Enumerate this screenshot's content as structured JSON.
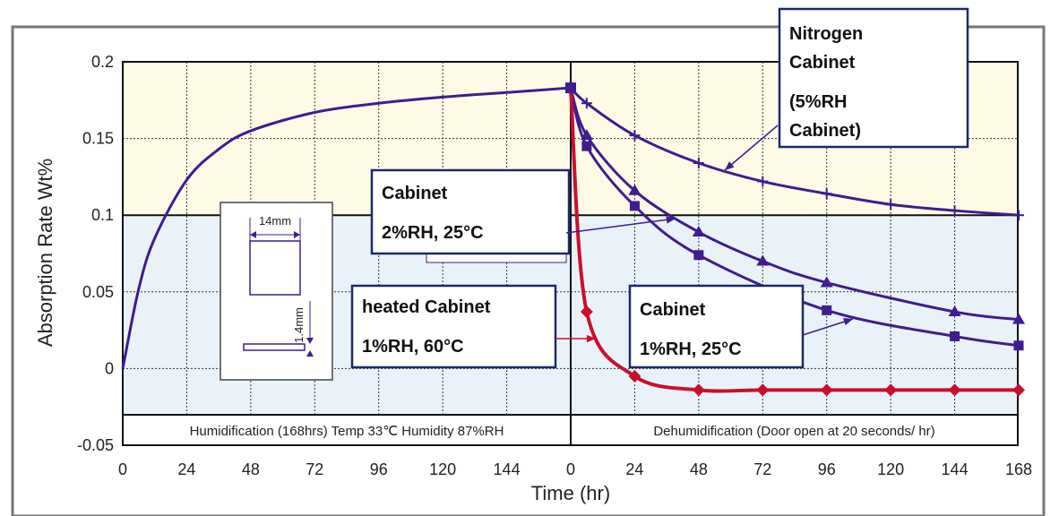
{
  "chart_data": {
    "type": "line",
    "xlabel": "Time (hr)",
    "ylabel": "Absorption Rate Wt%",
    "ylim": [
      -0.05,
      0.2
    ],
    "y_ticks": [
      "0.2",
      "0.15",
      "0.1",
      "0.05",
      "0",
      "-0.05"
    ],
    "x_ticks_humidification": [
      "0",
      "24",
      "48",
      "72",
      "96",
      "120",
      "144"
    ],
    "x_ticks_dehumidification": [
      "0",
      "24",
      "48",
      "72",
      "96",
      "120",
      "144",
      "168"
    ],
    "phase_labels": {
      "humidification": "Humidification (168hrs) Temp 33℃ Humidity 87%RH",
      "dehumidification": "Dehumidification (Door open at 20 seconds/ hr)"
    },
    "humidification_series": {
      "x": [
        0,
        6,
        12,
        24,
        36,
        48,
        72,
        96,
        120,
        144,
        168
      ],
      "y": [
        0.0,
        0.052,
        0.085,
        0.123,
        0.143,
        0.155,
        0.167,
        0.173,
        0.177,
        0.18,
        0.183
      ]
    },
    "series": [
      {
        "name": "Nitrogen Cabinet (5%RH Cabinet)",
        "marker": "plus",
        "color": "#3f1c8f",
        "x": [
          0,
          6,
          24,
          48,
          72,
          96,
          120,
          144,
          168
        ],
        "y": [
          0.183,
          0.173,
          0.152,
          0.134,
          0.122,
          0.114,
          0.107,
          0.103,
          0.1
        ]
      },
      {
        "name": "Cabinet 2%RH, 25°C",
        "marker": "triangle",
        "color": "#3f1c8f",
        "x": [
          0,
          6,
          24,
          48,
          72,
          96,
          144,
          168
        ],
        "y": [
          0.183,
          0.152,
          0.116,
          0.089,
          0.07,
          0.056,
          0.037,
          0.032
        ]
      },
      {
        "name": "Cabinet 1%RH, 25°C",
        "marker": "square",
        "color": "#3f1c8f",
        "x": [
          0,
          6,
          24,
          48,
          96,
          144,
          168
        ],
        "y": [
          0.183,
          0.145,
          0.106,
          0.074,
          0.038,
          0.021,
          0.015
        ]
      },
      {
        "name": "heated Cabinet 1%RH, 60°C",
        "marker": "diamond",
        "color": "#c8102e",
        "x": [
          0,
          6,
          24,
          48,
          72,
          96,
          120,
          144,
          168
        ],
        "y": [
          0.183,
          0.037,
          -0.005,
          -0.014,
          -0.014,
          -0.014,
          -0.014,
          -0.014,
          -0.014
        ]
      }
    ],
    "annotations": [
      {
        "lines": [
          "Nitrogen",
          "Cabinet",
          "(5%RH",
          "Cabinet)"
        ]
      },
      {
        "lines": [
          "Cabinet",
          "2%RH, 25°C"
        ]
      },
      {
        "lines": [
          "heated Cabinet",
          "1%RH, 60°C"
        ]
      },
      {
        "lines": [
          "Cabinet",
          "1%RH, 25°C"
        ]
      }
    ],
    "inset": {
      "width_label": "14mm",
      "thickness_label": "1.4mm"
    },
    "background": {
      "upper_band_color": "#fdfbe6",
      "lower_band_color": "#eaf2f9",
      "line_color": "#3f1c8f",
      "heated_color": "#c8102e"
    }
  }
}
